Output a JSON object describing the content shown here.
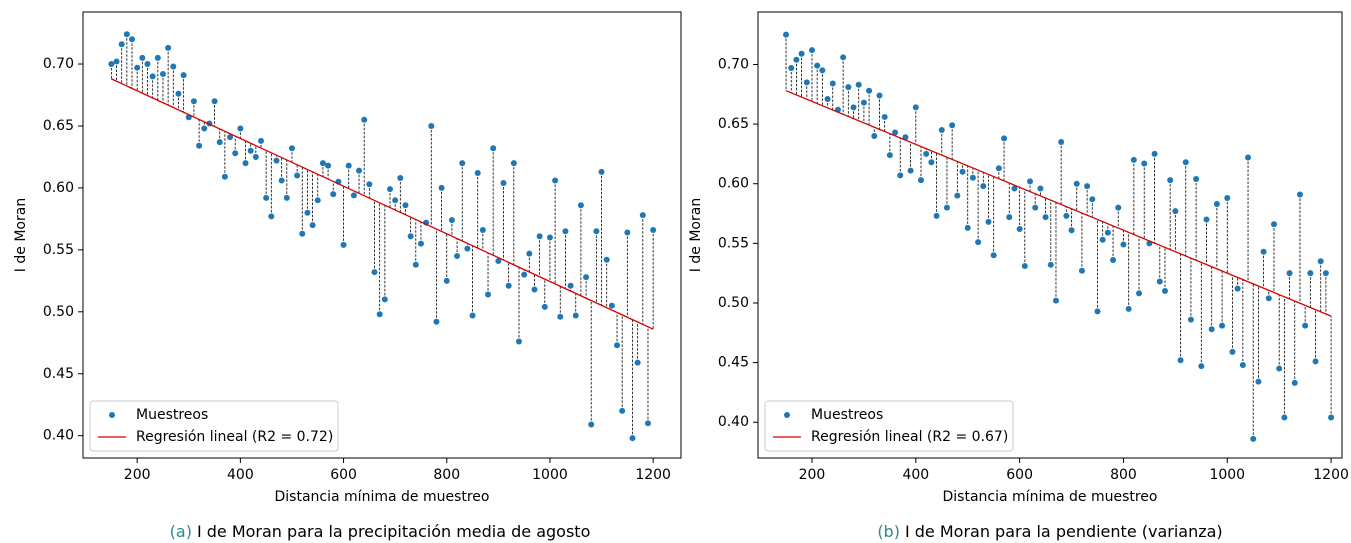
{
  "chart_data": [
    {
      "type": "scatter",
      "caption_label": "(a)",
      "caption": "I de Moran para la precipitación media de agosto",
      "xlabel": "Distancia mínima de muestreo",
      "ylabel": "I de Moran",
      "xlim": [
        95,
        1254
      ],
      "ylim": [
        0.382,
        0.742
      ],
      "xticks": [
        200,
        400,
        600,
        800,
        1000,
        1200
      ],
      "yticks": [
        {
          "value": 0.4,
          "label": "0.40"
        },
        {
          "value": 0.45,
          "label": "0.45"
        },
        {
          "value": 0.5,
          "label": "0.50"
        },
        {
          "value": 0.55,
          "label": "0.55"
        },
        {
          "value": 0.6,
          "label": "0.60"
        },
        {
          "value": 0.65,
          "label": "0.65"
        },
        {
          "value": 0.7,
          "label": "0.70"
        }
      ],
      "legend": "lower left",
      "residuals": true,
      "series": [
        {
          "name": "Muestreos",
          "color": "#1f77b4",
          "x": [
            150,
            160,
            170,
            180,
            190,
            200,
            210,
            220,
            230,
            240,
            250,
            260,
            270,
            280,
            290,
            300,
            310,
            320,
            330,
            340,
            350,
            360,
            370,
            380,
            390,
            400,
            410,
            420,
            430,
            440,
            450,
            460,
            470,
            480,
            490,
            500,
            510,
            520,
            530,
            540,
            550,
            560,
            570,
            580,
            590,
            600,
            610,
            620,
            630,
            640,
            650,
            660,
            670,
            680,
            690,
            700,
            710,
            720,
            730,
            740,
            750,
            760,
            770,
            780,
            790,
            800,
            810,
            820,
            830,
            840,
            850,
            860,
            870,
            880,
            890,
            900,
            910,
            920,
            930,
            940,
            950,
            960,
            970,
            980,
            990,
            1000,
            1010,
            1020,
            1030,
            1040,
            1050,
            1060,
            1070,
            1080,
            1090,
            1100,
            1110,
            1120,
            1130,
            1140,
            1150,
            1160,
            1170,
            1180,
            1190,
            1200
          ],
          "values": [
            0.7,
            0.702,
            0.716,
            0.724,
            0.72,
            0.697,
            0.705,
            0.7,
            0.69,
            0.705,
            0.692,
            0.713,
            0.698,
            0.676,
            0.691,
            0.657,
            0.67,
            0.634,
            0.648,
            0.652,
            0.67,
            0.637,
            0.609,
            0.641,
            0.628,
            0.648,
            0.62,
            0.63,
            0.625,
            0.638,
            0.592,
            0.577,
            0.622,
            0.606,
            0.592,
            0.632,
            0.61,
            0.563,
            0.58,
            0.57,
            0.59,
            0.62,
            0.618,
            0.595,
            0.605,
            0.554,
            0.618,
            0.594,
            0.614,
            0.655,
            0.603,
            0.532,
            0.498,
            0.51,
            0.599,
            0.59,
            0.608,
            0.586,
            0.561,
            0.538,
            0.555,
            0.572,
            0.65,
            0.492,
            0.6,
            0.525,
            0.574,
            0.545,
            0.62,
            0.551,
            0.497,
            0.612,
            0.566,
            0.514,
            0.632,
            0.541,
            0.604,
            0.521,
            0.62,
            0.476,
            0.53,
            0.547,
            0.518,
            0.561,
            0.504,
            0.56,
            0.606,
            0.496,
            0.565,
            0.521,
            0.497,
            0.586,
            0.528,
            0.409,
            0.565,
            0.613,
            0.542,
            0.505,
            0.473,
            0.42,
            0.564,
            0.398,
            0.459,
            0.578,
            0.41,
            0.566
          ]
        },
        {
          "name": "Regresión lineal (R2 = 0.72)",
          "color": "#d40000",
          "type": "line",
          "x": [
            150,
            1200
          ],
          "values": [
            0.688,
            0.486
          ]
        }
      ]
    },
    {
      "type": "scatter",
      "caption_label": "(b)",
      "caption": "I de Moran para la pendiente (varianza)",
      "xlabel": "Distancia mínima de muestreo",
      "ylabel": "I de Moran",
      "xlim": [
        96,
        1221
      ],
      "ylim": [
        0.37,
        0.744
      ],
      "xticks": [
        200,
        400,
        600,
        800,
        1000,
        1200
      ],
      "yticks": [
        {
          "value": 0.4,
          "label": "0.40"
        },
        {
          "value": 0.45,
          "label": "0.45"
        },
        {
          "value": 0.5,
          "label": "0.50"
        },
        {
          "value": 0.55,
          "label": "0.55"
        },
        {
          "value": 0.6,
          "label": "0.60"
        },
        {
          "value": 0.65,
          "label": "0.65"
        },
        {
          "value": 0.7,
          "label": "0.70"
        }
      ],
      "legend": "lower left",
      "residuals": true,
      "series": [
        {
          "name": "Muestreos",
          "color": "#1f77b4",
          "x": [
            150,
            160,
            170,
            180,
            190,
            200,
            210,
            220,
            230,
            240,
            250,
            260,
            270,
            280,
            290,
            300,
            310,
            320,
            330,
            340,
            350,
            360,
            370,
            380,
            390,
            400,
            410,
            420,
            430,
            440,
            450,
            460,
            470,
            480,
            490,
            500,
            510,
            520,
            530,
            540,
            550,
            560,
            570,
            580,
            590,
            600,
            610,
            620,
            630,
            640,
            650,
            660,
            670,
            680,
            690,
            700,
            710,
            720,
            730,
            740,
            750,
            760,
            770,
            780,
            790,
            800,
            810,
            820,
            830,
            840,
            850,
            860,
            870,
            880,
            890,
            900,
            910,
            920,
            930,
            940,
            950,
            960,
            970,
            980,
            990,
            1000,
            1010,
            1020,
            1030,
            1040,
            1050,
            1060,
            1070,
            1080,
            1090,
            1100,
            1110,
            1120,
            1130,
            1140,
            1150,
            1160,
            1170,
            1180,
            1190,
            1200
          ],
          "values": [
            0.725,
            0.697,
            0.704,
            0.709,
            0.685,
            0.712,
            0.699,
            0.695,
            0.671,
            0.684,
            0.662,
            0.706,
            0.681,
            0.664,
            0.683,
            0.668,
            0.678,
            0.64,
            0.674,
            0.656,
            0.624,
            0.643,
            0.607,
            0.639,
            0.611,
            0.664,
            0.603,
            0.625,
            0.618,
            0.573,
            0.645,
            0.58,
            0.649,
            0.59,
            0.61,
            0.563,
            0.605,
            0.551,
            0.598,
            0.568,
            0.54,
            0.613,
            0.638,
            0.572,
            0.596,
            0.562,
            0.531,
            0.602,
            0.58,
            0.596,
            0.572,
            0.532,
            0.502,
            0.635,
            0.573,
            0.561,
            0.6,
            0.527,
            0.598,
            0.587,
            0.493,
            0.553,
            0.559,
            0.536,
            0.58,
            0.549,
            0.495,
            0.62,
            0.508,
            0.617,
            0.55,
            0.625,
            0.518,
            0.51,
            0.603,
            0.577,
            0.452,
            0.618,
            0.486,
            0.604,
            0.447,
            0.57,
            0.478,
            0.583,
            0.481,
            0.588,
            0.459,
            0.512,
            0.448,
            0.622,
            0.386,
            0.434,
            0.543,
            0.504,
            0.566,
            0.445,
            0.404,
            0.525,
            0.433,
            0.591,
            0.481,
            0.525,
            0.451,
            0.535,
            0.525,
            0.404
          ]
        },
        {
          "name": "Regresión lineal (R2 = 0.67)",
          "color": "#d40000",
          "type": "line",
          "x": [
            150,
            1200
          ],
          "values": [
            0.678,
            0.489
          ]
        }
      ]
    }
  ]
}
